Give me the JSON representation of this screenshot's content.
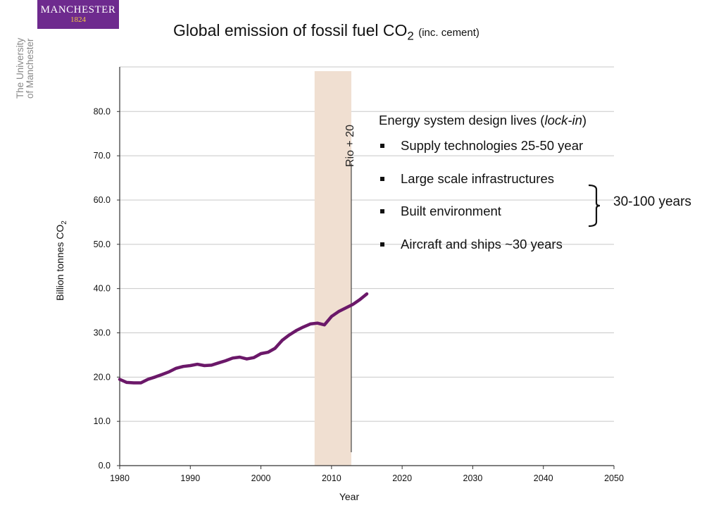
{
  "logo": {
    "name": "MANCHESTER",
    "year": "1824"
  },
  "university": {
    "line1": "The University",
    "line2": "of Manchester"
  },
  "title": {
    "main": "Global emission of fossil fuel CO",
    "sub": "2",
    "note": "(inc. cement)"
  },
  "lockin": {
    "heading_before": "Energy system design lives (",
    "heading_em": "lock-in",
    "heading_after": ")",
    "items": [
      "Supply technologies 25-50 year",
      "Large scale infrastructures",
      "Built environment",
      "Aircraft and ships ~30 years"
    ],
    "bracket_label": "30-100 years"
  },
  "colors": {
    "series": "#6b1869",
    "band": "#f0dfd1",
    "brand": "#6e2a8e"
  },
  "chart_data": {
    "type": "line",
    "xlabel": "Year",
    "ylabel": "Billion tonnes CO",
    "ylabel_sub": "2",
    "xlim": [
      1980,
      2050
    ],
    "ylim": [
      0,
      90
    ],
    "yticks": [
      "0.0",
      "10.0",
      "20.0",
      "30.0",
      "40.0",
      "50.0",
      "60.0",
      "70.0",
      "80.0"
    ],
    "xticks": [
      "1980",
      "1990",
      "2000",
      "2010",
      "2020",
      "2030",
      "2040",
      "2050"
    ],
    "grid": true,
    "band": {
      "from": 2007.6,
      "to": 2012.8
    },
    "marker": {
      "x": 2012.8,
      "label": "Rio + 20"
    },
    "series": [
      {
        "x": [
          1980,
          1981,
          1982,
          1983,
          1984,
          1985,
          1986,
          1987,
          1988,
          1989,
          1990,
          1991,
          1992,
          1993,
          1994,
          1995,
          1996,
          1997,
          1998,
          1999,
          2000,
          2001,
          2002,
          2003,
          2004,
          2005,
          2006,
          2007,
          2008,
          2009,
          2010,
          2011,
          2012,
          2013,
          2014,
          2015
        ],
        "values": [
          19.5,
          18.8,
          18.7,
          18.7,
          19.5,
          20.0,
          20.6,
          21.2,
          22.0,
          22.4,
          22.6,
          22.9,
          22.6,
          22.7,
          23.2,
          23.7,
          24.3,
          24.5,
          24.1,
          24.4,
          25.3,
          25.6,
          26.5,
          28.3,
          29.5,
          30.5,
          31.3,
          32.0,
          32.2,
          31.8,
          33.7,
          34.8,
          35.6,
          36.4,
          37.5,
          38.8
        ]
      }
    ]
  }
}
